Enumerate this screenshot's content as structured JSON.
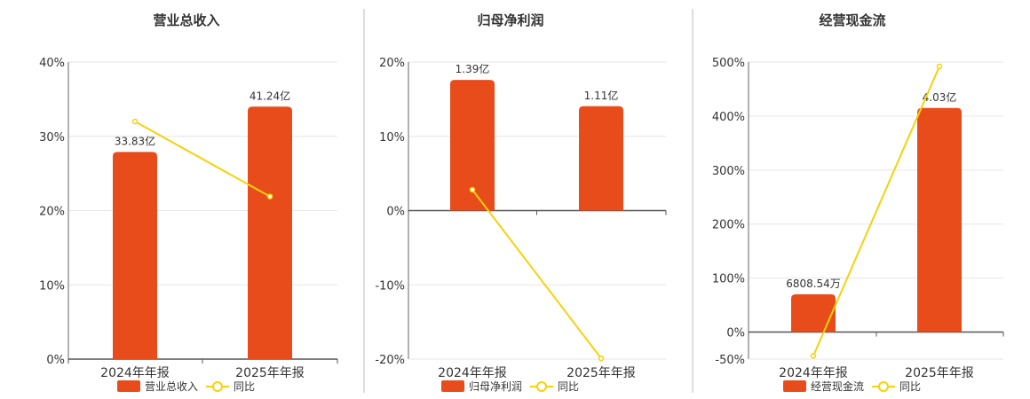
{
  "legend_line_label": "同比",
  "chart_data": [
    {
      "type": "bar",
      "title": "营业总收入",
      "categories": [
        "2024年年报",
        "2025年年报"
      ],
      "series": [
        {
          "name": "营业总收入",
          "values": [
            33.83,
            41.24
          ],
          "labels": [
            "33.83亿",
            "41.24亿"
          ],
          "unit": "亿",
          "color": "#e84c1b"
        },
        {
          "name": "同比",
          "type": "line",
          "values": [
            32.0,
            21.9
          ],
          "unit": "%",
          "color": "#f5d20c"
        }
      ],
      "yaxis": {
        "min": 0,
        "max": 40,
        "ticks": [
          0,
          10,
          20,
          30,
          40
        ],
        "tick_labels": [
          "0%",
          "10%",
          "20%",
          "30%",
          "40%"
        ]
      },
      "grid": true,
      "legend_position": "bottom"
    },
    {
      "type": "bar",
      "title": "归母净利润",
      "categories": [
        "2024年年报",
        "2025年年报"
      ],
      "series": [
        {
          "name": "归母净利润",
          "values": [
            1.39,
            1.11
          ],
          "labels": [
            "1.39亿",
            "1.11亿"
          ],
          "unit": "亿",
          "color": "#e84c1b"
        },
        {
          "name": "同比",
          "type": "line",
          "values": [
            2.8,
            -19.9
          ],
          "unit": "%",
          "color": "#f5d20c"
        }
      ],
      "yaxis": {
        "min": -20,
        "max": 20,
        "ticks": [
          -20,
          -10,
          0,
          10,
          20
        ],
        "tick_labels": [
          "-20%",
          "-10%",
          "0%",
          "10%",
          "20%"
        ]
      },
      "grid": true,
      "legend_position": "bottom"
    },
    {
      "type": "bar",
      "title": "经营现金流",
      "categories": [
        "2024年年报",
        "2025年年报"
      ],
      "series": [
        {
          "name": "经营现金流",
          "values": [
            0.680854,
            4.03
          ],
          "labels": [
            "6808.54万",
            "4.03亿"
          ],
          "unit": "亿",
          "color": "#e84c1b"
        },
        {
          "name": "同比",
          "type": "line",
          "values": [
            -44,
            492
          ],
          "unit": "%",
          "color": "#f5d20c"
        }
      ],
      "yaxis": {
        "min": -50,
        "max": 500,
        "ticks": [
          -50,
          0,
          100,
          200,
          300,
          400,
          500
        ],
        "tick_labels": [
          "-50%",
          "0%",
          "100%",
          "200%",
          "300%",
          "400%",
          "500%"
        ]
      },
      "grid": true,
      "legend_position": "bottom"
    }
  ]
}
